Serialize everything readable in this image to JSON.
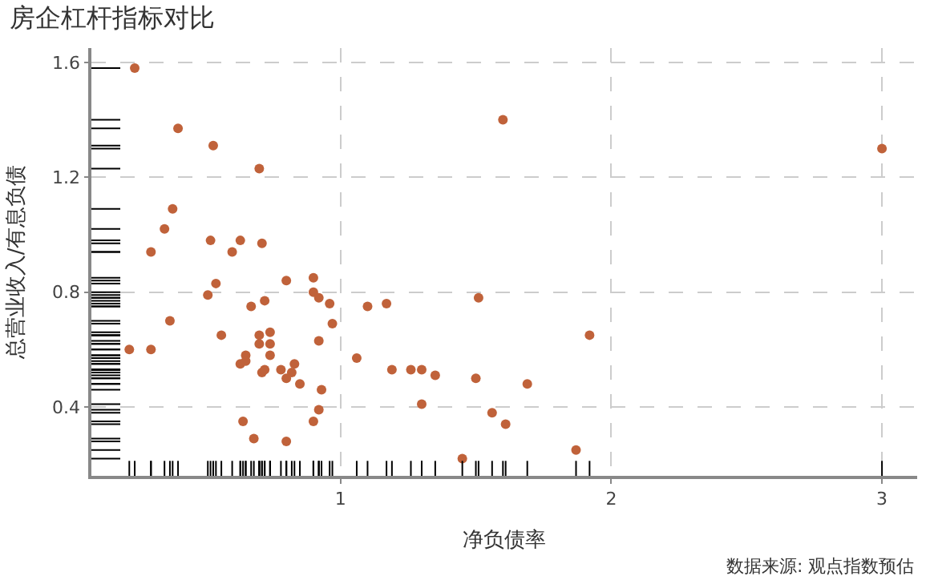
{
  "chart_data": {
    "type": "scatter",
    "title": "房企杠杆指标对比",
    "xlabel": "净负债率",
    "ylabel": "总营业收入/有息负债",
    "annotations": [
      "数据来源: 观点指数预估"
    ],
    "x": [
      0.24,
      0.4,
      0.53,
      0.7,
      0.38,
      0.35,
      0.52,
      0.63,
      0.71,
      0.3,
      0.6,
      0.8,
      0.9,
      0.54,
      0.51,
      0.9,
      0.92,
      0.72,
      0.96,
      0.67,
      1.1,
      1.17,
      0.37,
      0.97,
      0.56,
      0.7,
      0.74,
      0.7,
      0.74,
      0.92,
      0.22,
      0.3,
      1.06,
      0.65,
      0.63,
      0.65,
      0.74,
      0.71,
      0.72,
      0.78,
      0.83,
      0.82,
      0.8,
      0.85,
      1.19,
      1.26,
      1.3,
      1.35,
      0.93,
      1.3,
      0.92,
      0.64,
      0.9,
      0.68,
      0.8,
      1.6,
      3.0,
      1.51,
      1.92,
      1.5,
      1.69,
      1.56,
      1.61,
      1.87,
      1.45
    ],
    "values": [
      1.58,
      1.37,
      1.31,
      1.23,
      1.09,
      1.02,
      0.98,
      0.98,
      0.97,
      0.94,
      0.94,
      0.84,
      0.85,
      0.83,
      0.79,
      0.8,
      0.78,
      0.77,
      0.76,
      0.75,
      0.75,
      0.76,
      0.7,
      0.69,
      0.65,
      0.65,
      0.66,
      0.62,
      0.62,
      0.63,
      0.6,
      0.6,
      0.57,
      0.58,
      0.55,
      0.56,
      0.58,
      0.52,
      0.53,
      0.53,
      0.55,
      0.52,
      0.5,
      0.48,
      0.53,
      0.53,
      0.53,
      0.51,
      0.46,
      0.41,
      0.39,
      0.35,
      0.35,
      0.29,
      0.28,
      1.4,
      1.3,
      0.78,
      0.65,
      0.5,
      0.48,
      0.38,
      0.34,
      0.25,
      0.22
    ],
    "color": "#c0623a",
    "marker": "circle",
    "grid": true,
    "xlim": [
      0.08,
      3.13
    ],
    "xticks": [
      1,
      2,
      3
    ],
    "ylim": [
      0.16,
      1.65
    ],
    "yticks": [
      0.4,
      0.8,
      1.2,
      1.6
    ]
  }
}
